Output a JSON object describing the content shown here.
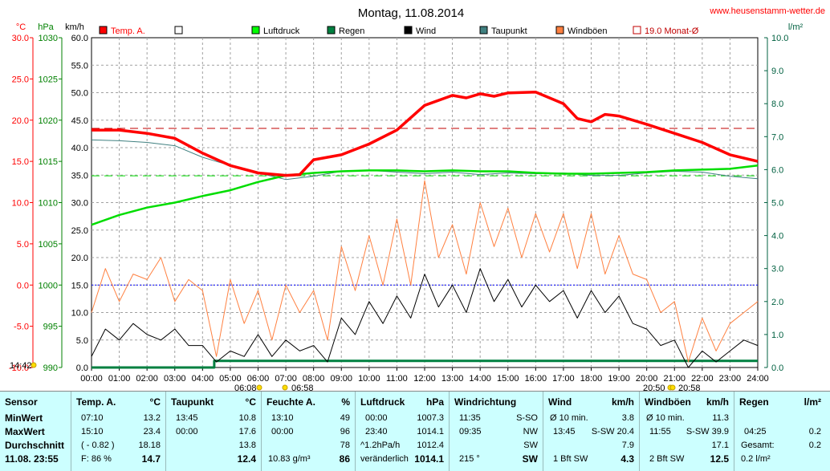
{
  "chart_data": {
    "type": "line",
    "title": "Montag, 11.08.2014",
    "site": "www.heusenstamm-wetter.de",
    "axes": {
      "temp": {
        "unit": "°C",
        "range": [
          -10,
          30
        ],
        "ticks": [
          "30.0",
          "25.0",
          "20.0",
          "15.0",
          "10.0",
          "5.0",
          "0.0",
          "-5.0",
          "-10.0"
        ],
        "color": "#ff0000"
      },
      "pressure": {
        "unit": "hPa",
        "range": [
          990,
          1030
        ],
        "ticks": [
          "1030",
          "1025",
          "1020",
          "1015",
          "1010",
          "1005",
          "1000",
          "995",
          "990"
        ],
        "color": "#008000"
      },
      "wind": {
        "unit": "km/h",
        "range": [
          0,
          60
        ],
        "ticks": [
          "60.0",
          "55.0",
          "50.0",
          "45.0",
          "40.0",
          "35.0",
          "30.0",
          "25.0",
          "20.0",
          "15.0",
          "10.0",
          "5.0",
          "0.0"
        ],
        "color": "#000000"
      },
      "rain": {
        "unit": "l/m²",
        "range": [
          0,
          10
        ],
        "ticks": [
          "10.0",
          "9.0",
          "8.0",
          "7.0",
          "6.0",
          "5.0",
          "4.0",
          "3.0",
          "2.0",
          "1.0",
          "0.0"
        ],
        "color": "#006040"
      },
      "x": {
        "ticks": [
          "00:00",
          "01:00",
          "02:00",
          "03:00",
          "04:00",
          "05:00",
          "06:00",
          "07:00",
          "08:00",
          "09:00",
          "10:00",
          "11:00",
          "12:00",
          "13:00",
          "14:00",
          "15:00",
          "16:00",
          "17:00",
          "18:00",
          "19:00",
          "20:00",
          "21:00",
          "22:00",
          "23:00",
          "24:00"
        ]
      }
    },
    "legend": [
      {
        "label": "Temp. A.",
        "color": "#ff0000",
        "style": "filled"
      },
      {
        "label": "",
        "color": "#000000",
        "style": "empty"
      },
      {
        "label": "Luftdruck",
        "color": "#00ff00",
        "style": "filled"
      },
      {
        "label": "Regen",
        "color": "#008040",
        "style": "filled"
      },
      {
        "label": "Wind",
        "color": "#000000",
        "style": "filled"
      },
      {
        "label": "Taupunkt",
        "color": "#408080",
        "style": "filled"
      },
      {
        "label": "Windböen",
        "color": "#ff8040",
        "style": "filled"
      },
      {
        "label": "19.0 Monat-Ø",
        "color": "#c00000",
        "style": "empty"
      }
    ],
    "sun_labels": [
      "14:42",
      "06:08",
      "06:58",
      "20:50",
      "20:58"
    ],
    "reference_lines": {
      "temp_month_avg": 19.0,
      "pressure_ref": 1013.25,
      "zero_temp": 0.0
    },
    "series": [
      {
        "name": "Temp. A.",
        "axis": "temp",
        "color": "#ff0000",
        "x": [
          0,
          1,
          2,
          3,
          4,
          5,
          6,
          7,
          7.5,
          8,
          9,
          10,
          11,
          12,
          13,
          13.5,
          14,
          14.5,
          15,
          16,
          17,
          17.5,
          18,
          18.5,
          19,
          20,
          21,
          22,
          23,
          24
        ],
        "y": [
          18.8,
          18.8,
          18.4,
          17.8,
          16.0,
          14.5,
          13.6,
          13.3,
          13.4,
          15.2,
          15.8,
          17.1,
          18.8,
          21.8,
          23.0,
          22.7,
          23.2,
          22.9,
          23.3,
          23.4,
          22.0,
          20.2,
          19.8,
          20.7,
          20.5,
          19.5,
          18.4,
          17.3,
          15.8,
          15.0
        ]
      },
      {
        "name": "Taupunkt",
        "axis": "temp",
        "color": "#408080",
        "x": [
          0,
          1,
          2,
          3,
          4,
          5,
          6,
          7,
          8,
          9,
          10,
          11,
          12,
          13,
          14,
          15,
          16,
          17,
          18,
          19,
          20,
          21,
          22,
          23,
          24
        ],
        "y": [
          17.6,
          17.5,
          17.3,
          16.9,
          15.5,
          14.5,
          13.6,
          12.8,
          13.2,
          13.8,
          13.9,
          13.7,
          13.5,
          13.7,
          13.4,
          13.6,
          13.5,
          13.6,
          13.3,
          13.3,
          13.6,
          13.8,
          13.7,
          13.2,
          12.9
        ]
      },
      {
        "name": "Luftdruck",
        "axis": "pressure",
        "color": "#00dd00",
        "x": [
          0,
          1,
          2,
          3,
          4,
          5,
          6,
          7,
          8,
          9,
          10,
          11,
          12,
          13,
          14,
          15,
          16,
          17,
          18,
          19,
          20,
          21,
          22,
          23,
          24
        ],
        "y": [
          1007.3,
          1008.5,
          1009.4,
          1010.0,
          1010.8,
          1011.5,
          1012.5,
          1013.3,
          1013.6,
          1013.8,
          1013.9,
          1013.9,
          1013.8,
          1013.9,
          1013.8,
          1013.8,
          1013.6,
          1013.5,
          1013.5,
          1013.6,
          1013.7,
          1013.9,
          1014.0,
          1014.1,
          1014.5
        ]
      },
      {
        "name": "Windböen",
        "axis": "wind",
        "color": "#ff8040",
        "x": [
          0,
          0.5,
          1,
          1.5,
          2,
          2.5,
          3,
          3.5,
          4,
          4.5,
          5,
          5.5,
          6,
          6.5,
          7,
          7.5,
          8,
          8.5,
          9,
          9.5,
          10,
          10.5,
          11,
          11.5,
          12,
          12.5,
          13,
          13.5,
          14,
          14.5,
          15,
          15.5,
          16,
          16.5,
          17,
          17.5,
          18,
          18.5,
          19,
          19.5,
          20,
          20.5,
          21,
          21.5,
          22,
          22.5,
          23,
          23.5,
          24
        ],
        "y": [
          10,
          18,
          12,
          17,
          16,
          20,
          12,
          16,
          14,
          2,
          16,
          8,
          14,
          5,
          15,
          10,
          14,
          5,
          22,
          14,
          24,
          15,
          27,
          15,
          34,
          20,
          26,
          17,
          30,
          22,
          29,
          20,
          28,
          21,
          28,
          18,
          28,
          17,
          24,
          17,
          16,
          10,
          12,
          1,
          9,
          3,
          8,
          10,
          12
        ]
      },
      {
        "name": "Wind",
        "axis": "wind",
        "color": "#000000",
        "x": [
          0,
          0.5,
          1,
          1.5,
          2,
          2.5,
          3,
          3.5,
          4,
          4.5,
          5,
          5.5,
          6,
          6.5,
          7,
          7.5,
          8,
          8.5,
          9,
          9.5,
          10,
          10.5,
          11,
          11.5,
          12,
          12.5,
          13,
          13.5,
          14,
          14.5,
          15,
          15.5,
          16,
          16.5,
          17,
          17.5,
          18,
          18.5,
          19,
          19.5,
          20,
          20.5,
          21,
          21.5,
          22,
          22.5,
          23,
          23.5,
          24
        ],
        "y": [
          2,
          7,
          5,
          8,
          6,
          5,
          7,
          4,
          4,
          1,
          3,
          2,
          6,
          2,
          5,
          3,
          4,
          1,
          9,
          6,
          12,
          8,
          13,
          9,
          17,
          11,
          15,
          10,
          18,
          12,
          16,
          11,
          15,
          12,
          14,
          9,
          14,
          10,
          13,
          8,
          7,
          4,
          5,
          0,
          3,
          1,
          3,
          5,
          4
        ]
      },
      {
        "name": "Regen",
        "axis": "rain",
        "color": "#008040",
        "x": [
          0,
          4.42,
          4.42,
          24
        ],
        "y": [
          0,
          0,
          0.2,
          0.2
        ]
      }
    ]
  },
  "stats": {
    "sensor": {
      "header": "Sensor",
      "min": "MinWert",
      "max": "MaxWert",
      "avg": "Durchschnitt",
      "now": "11.08. 23:55"
    },
    "temp": {
      "header": "Temp. A.",
      "unit": "°C",
      "min_time": "07:10",
      "min_val": "13.2",
      "max_time": "15:10",
      "max_val": "23.4",
      "avg_note": "( - 0.82 )",
      "avg_val": "18.18",
      "now_note": "F: 86 %",
      "now_val": "14.7"
    },
    "dew": {
      "header": "Taupunkt",
      "unit": "°C",
      "min_time": "13:45",
      "min_val": "10.8",
      "max_time": "00:00",
      "max_val": "17.6",
      "avg_val": "13.8",
      "now_val": "12.4"
    },
    "humidity": {
      "header": "Feuchte A.",
      "unit": "%",
      "min_time": "13:10",
      "min_val": "49",
      "max_time": "00:00",
      "max_val": "96",
      "avg_val": "78",
      "now_note": "10.83 g/m³",
      "now_val": "86"
    },
    "pressure": {
      "header": "Luftdruck",
      "unit": "hPa",
      "min_time": "00:00",
      "min_val": "1007.3",
      "max_time": "23:40",
      "max_val": "1014.1",
      "avg_note": "^1.2hPa/h",
      "avg_val": "1012.4",
      "now_note": "veränderlich",
      "now_val": "1014.1"
    },
    "winddir": {
      "header": "Windrichtung",
      "min_time": "11:35",
      "min_val": "S-SO",
      "max_time": "09:35",
      "max_val": "NW",
      "avg_val": "SW",
      "now_note": "215 °",
      "now_val": "SW"
    },
    "wind": {
      "header": "Wind",
      "unit": "km/h",
      "r1_note": "Ø 10 min.",
      "r1_val": "3.8",
      "r2_time": "13:45",
      "r2_note": "S-SW 20.4",
      "avg_val": "7.9",
      "now_note": "1 Bft SW",
      "now_val": "4.3"
    },
    "gust": {
      "header": "Windböen",
      "unit": "km/h",
      "r1_note": "Ø 10 min.",
      "r1_val": "11.3",
      "r2_time": "11:55",
      "r2_note": "S-SW 39.9",
      "avg_val": "17.1",
      "now_note": "2 Bft SW",
      "now_val": "12.5"
    },
    "rain": {
      "header": "Regen",
      "unit": "l/m²",
      "r2_time": "04:25",
      "r2_val": "0.2",
      "avg_note": "Gesamt:",
      "avg_val": "0.2",
      "now_note": "0.2 l/m²"
    }
  }
}
